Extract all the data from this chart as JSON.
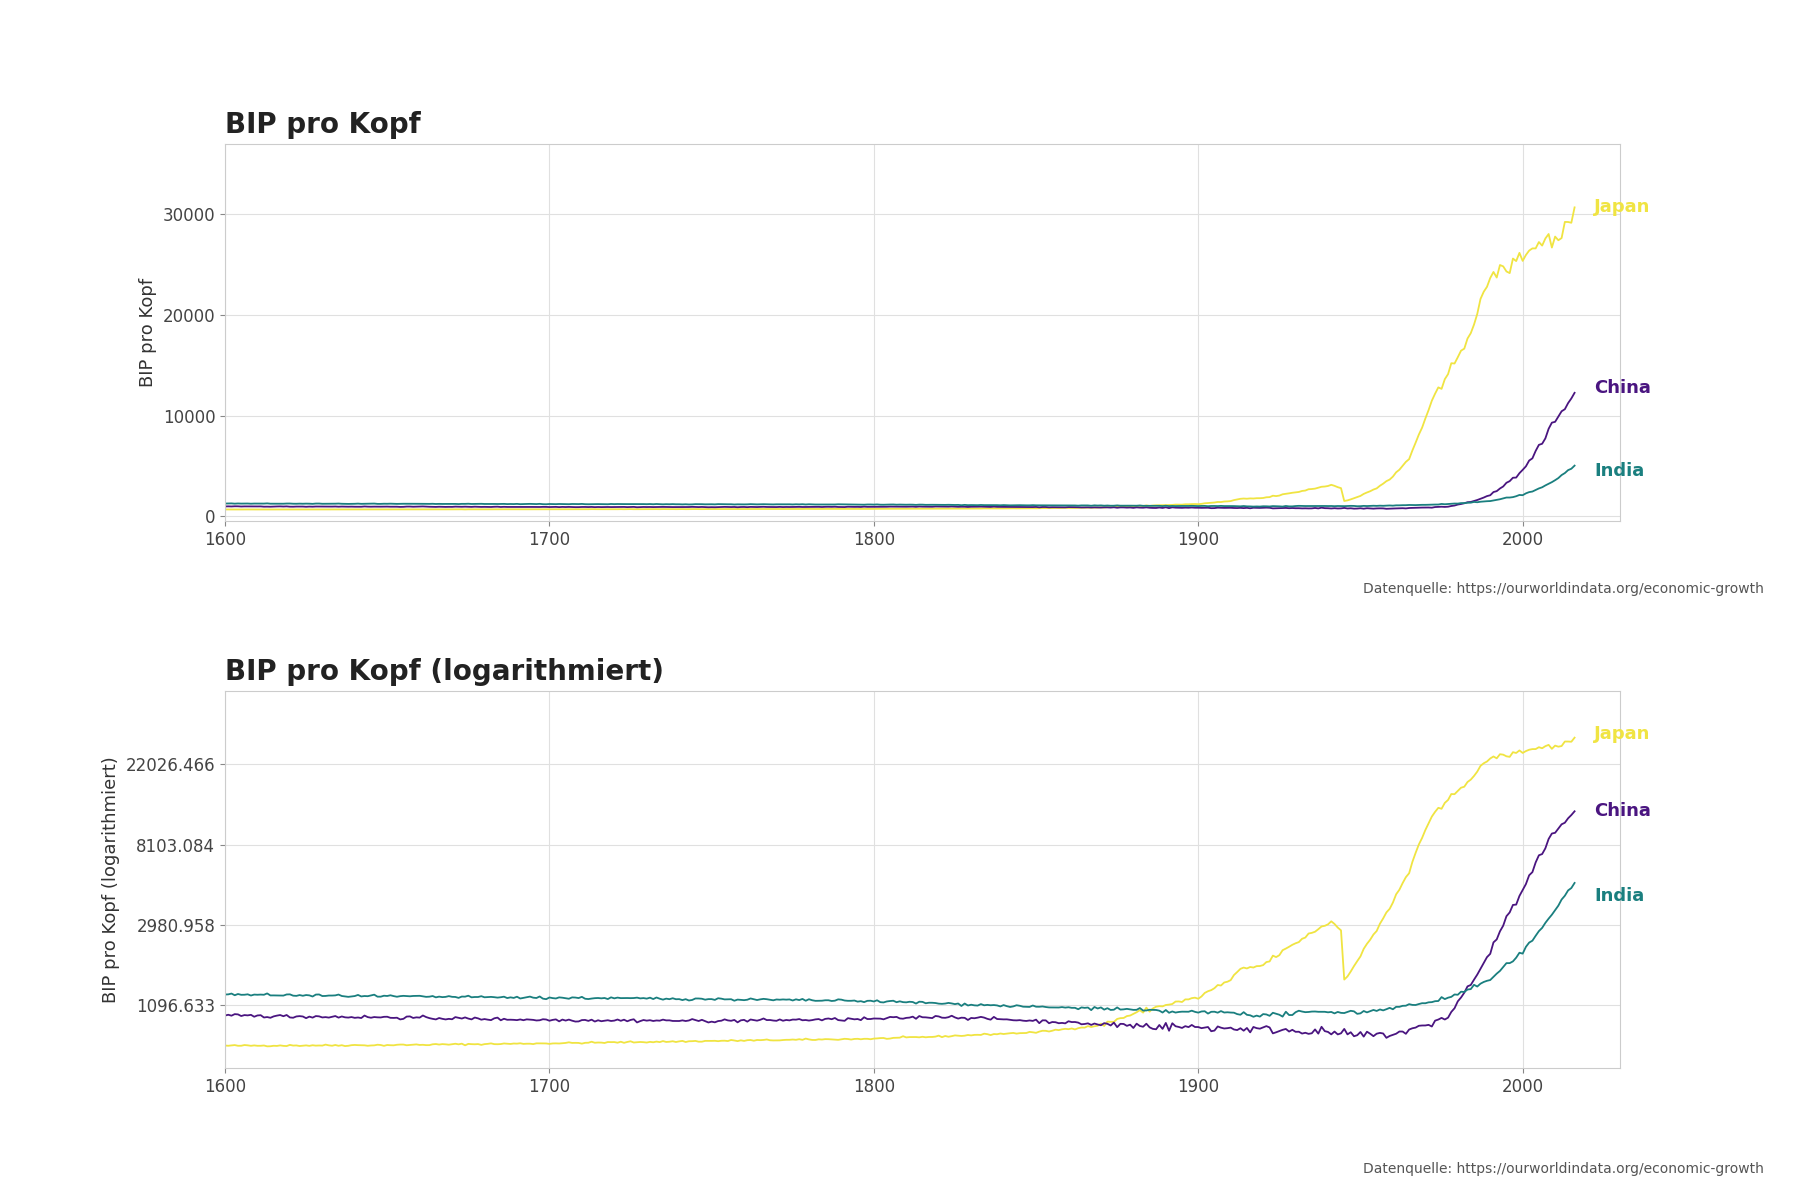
{
  "title1": "BIP pro Kopf",
  "title2": "BIP pro Kopf (logarithmiert)",
  "ylabel1": "BIP pro Kopf",
  "ylabel2": "BIP pro Kopf (logarithmiert)",
  "source_text": "Datenquelle: https://ourworldindata.org/economic-growth",
  "background_color": "#ffffff",
  "plot_bg_color": "#ffffff",
  "grid_color": "#e0e0e0",
  "colors": {
    "Japan": "#f0e442",
    "China": "#4a1580",
    "India": "#1a7f7f"
  },
  "log_yticks": [
    1096.633,
    2980.958,
    8103.084,
    22026.466
  ],
  "log_ytick_labels": [
    "1096.633",
    "2980.958",
    "8103.084",
    "22026.466"
  ],
  "yticks1": [
    0,
    10000,
    20000,
    30000
  ],
  "xticks": [
    1600,
    1700,
    1800,
    1900,
    2000
  ]
}
